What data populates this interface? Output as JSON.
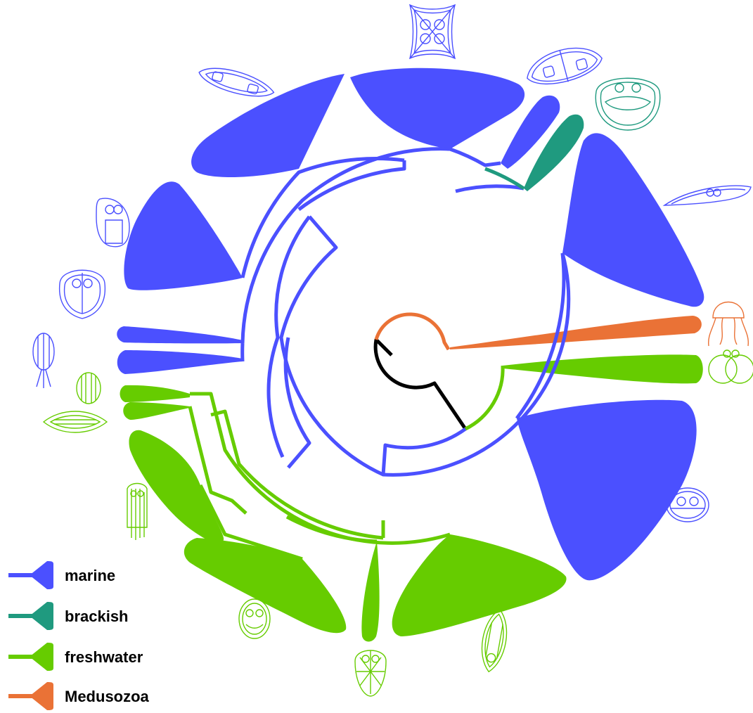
{
  "colors": {
    "marine": "#4b50ff",
    "brackish": "#1f9a7f",
    "freshwater": "#66cc00",
    "medusozoa": "#ea7236",
    "root": "#000000"
  },
  "legend": [
    {
      "key": "marine",
      "label": "marine",
      "color": "#4b50ff"
    },
    {
      "key": "brackish",
      "label": "brackish",
      "color": "#1f9a7f"
    },
    {
      "key": "freshwater",
      "label": "freshwater",
      "color": "#66cc00"
    },
    {
      "key": "medusozoa",
      "label": "Medusozoa",
      "color": "#ea7236"
    }
  ],
  "icons": [
    "square-spore-icon",
    "marine-spore-icon",
    "brackish-spore-icon",
    "elongate-spore-icon",
    "jellyfish-icon",
    "freshwater-round-spore-icon",
    "marine-spore-icon",
    "freshwater-spore-icon",
    "freshwater-spore-icon",
    "freshwater-spore-icon",
    "freshwater-spore-icon",
    "fusiform-spore-icon",
    "ribbed-spore-icon",
    "jellyfish-icon",
    "marine-spore-icon",
    "marine-spore-icon",
    "marine-spore-icon"
  ]
}
